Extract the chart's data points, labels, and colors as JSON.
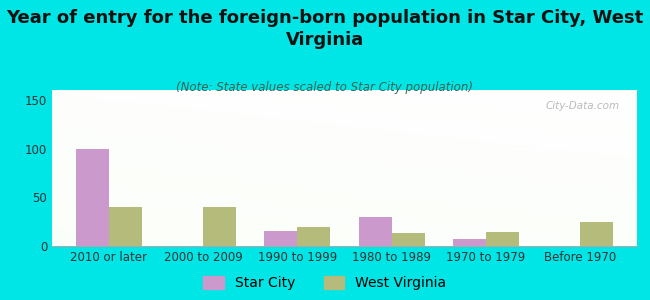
{
  "title": "Year of entry for the foreign-born population in Star City, West\nVirginia",
  "subtitle": "(Note: State values scaled to Star City population)",
  "categories": [
    "2010 or later",
    "2000 to 2009",
    "1990 to 1999",
    "1980 to 1989",
    "1970 to 1979",
    "Before 1970"
  ],
  "star_city_values": [
    100,
    0,
    15,
    30,
    7,
    0
  ],
  "west_virginia_values": [
    40,
    40,
    20,
    13,
    14,
    25
  ],
  "star_city_color": "#cc99cc",
  "west_virginia_color": "#b5bb7a",
  "ylim": [
    0,
    160
  ],
  "yticks": [
    0,
    50,
    100,
    150
  ],
  "background_color": "#00e5e5",
  "bar_width": 0.35,
  "watermark": "City-Data.com",
  "title_fontsize": 13,
  "subtitle_fontsize": 8.5,
  "legend_fontsize": 10,
  "tick_fontsize": 8.5
}
